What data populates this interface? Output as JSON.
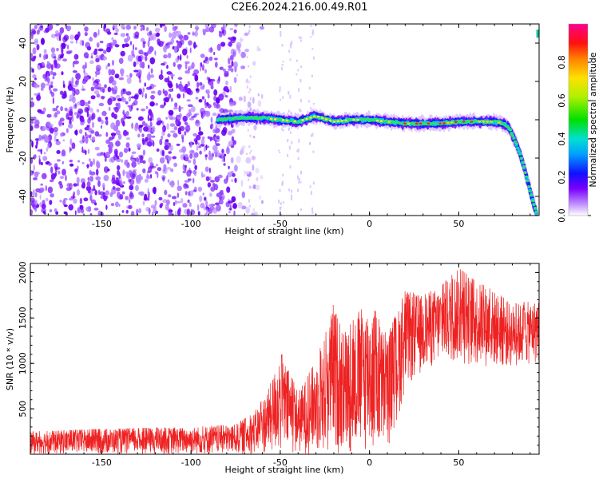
{
  "title": "C2E6.2024.216.00.49.R01",
  "chart_data": [
    {
      "type": "heatmap",
      "xlabel": "Height of straight line (km)",
      "ylabel": "Frequency (Hz)",
      "xlim": [
        -190,
        95
      ],
      "ylim": [
        -50,
        50
      ],
      "xticks": [
        -150,
        -100,
        -50,
        0,
        50
      ],
      "yticks": [
        -40,
        -20,
        0,
        20,
        40
      ],
      "colorbar": {
        "label": "Normalized spectral amplitude",
        "range": [
          0,
          1
        ],
        "ticks": [
          0.0,
          0.2,
          0.4,
          0.6,
          0.8
        ]
      },
      "signal_track": {
        "x": [
          -85,
          -70,
          -60,
          -50,
          -40,
          -30,
          -20,
          -10,
          0,
          10,
          20,
          30,
          40,
          50,
          60,
          70,
          75,
          78,
          80,
          82,
          84,
          86,
          88,
          90,
          92,
          94
        ],
        "y": [
          0,
          1,
          1,
          0,
          -1,
          2,
          -1,
          0,
          0,
          -1,
          -2,
          -2,
          -2,
          -1,
          -1,
          -1,
          -2,
          -4,
          -8,
          -12,
          -17,
          -23,
          -30,
          -37,
          -44,
          -50
        ]
      },
      "noise_region": {
        "x": [
          -190,
          -70
        ],
        "y": [
          -50,
          50
        ]
      }
    },
    {
      "type": "line",
      "xlabel": "Height of straight line (km)",
      "ylabel": "SNR (10 * v/v)",
      "xlim": [
        -190,
        95
      ],
      "ylim": [
        0,
        2100
      ],
      "xticks": [
        -150,
        -100,
        -50,
        0,
        50
      ],
      "yticks": [
        500,
        1000,
        1500,
        2000
      ],
      "series_color": "#ee2222",
      "envelope": {
        "x": [
          -190,
          -150,
          -100,
          -75,
          -65,
          -60,
          -55,
          -50,
          -45,
          -40,
          -35,
          -30,
          -25,
          -20,
          -15,
          -10,
          -5,
          0,
          5,
          10,
          15,
          20,
          30,
          40,
          50,
          60,
          70,
          80,
          95
        ],
        "low": [
          0,
          0,
          0,
          0,
          0,
          0,
          0,
          0,
          0,
          0,
          0,
          0,
          0,
          0,
          0,
          0,
          0,
          0,
          0,
          50,
          300,
          700,
          900,
          1000,
          1000,
          950,
          950,
          950,
          1000
        ],
        "high": [
          250,
          280,
          300,
          330,
          450,
          600,
          800,
          1150,
          900,
          700,
          850,
          1050,
          1300,
          1700,
          1300,
          1450,
          1600,
          1700,
          1500,
          1300,
          1550,
          1800,
          1750,
          1850,
          2050,
          1900,
          1800,
          1650,
          1700
        ]
      }
    }
  ]
}
